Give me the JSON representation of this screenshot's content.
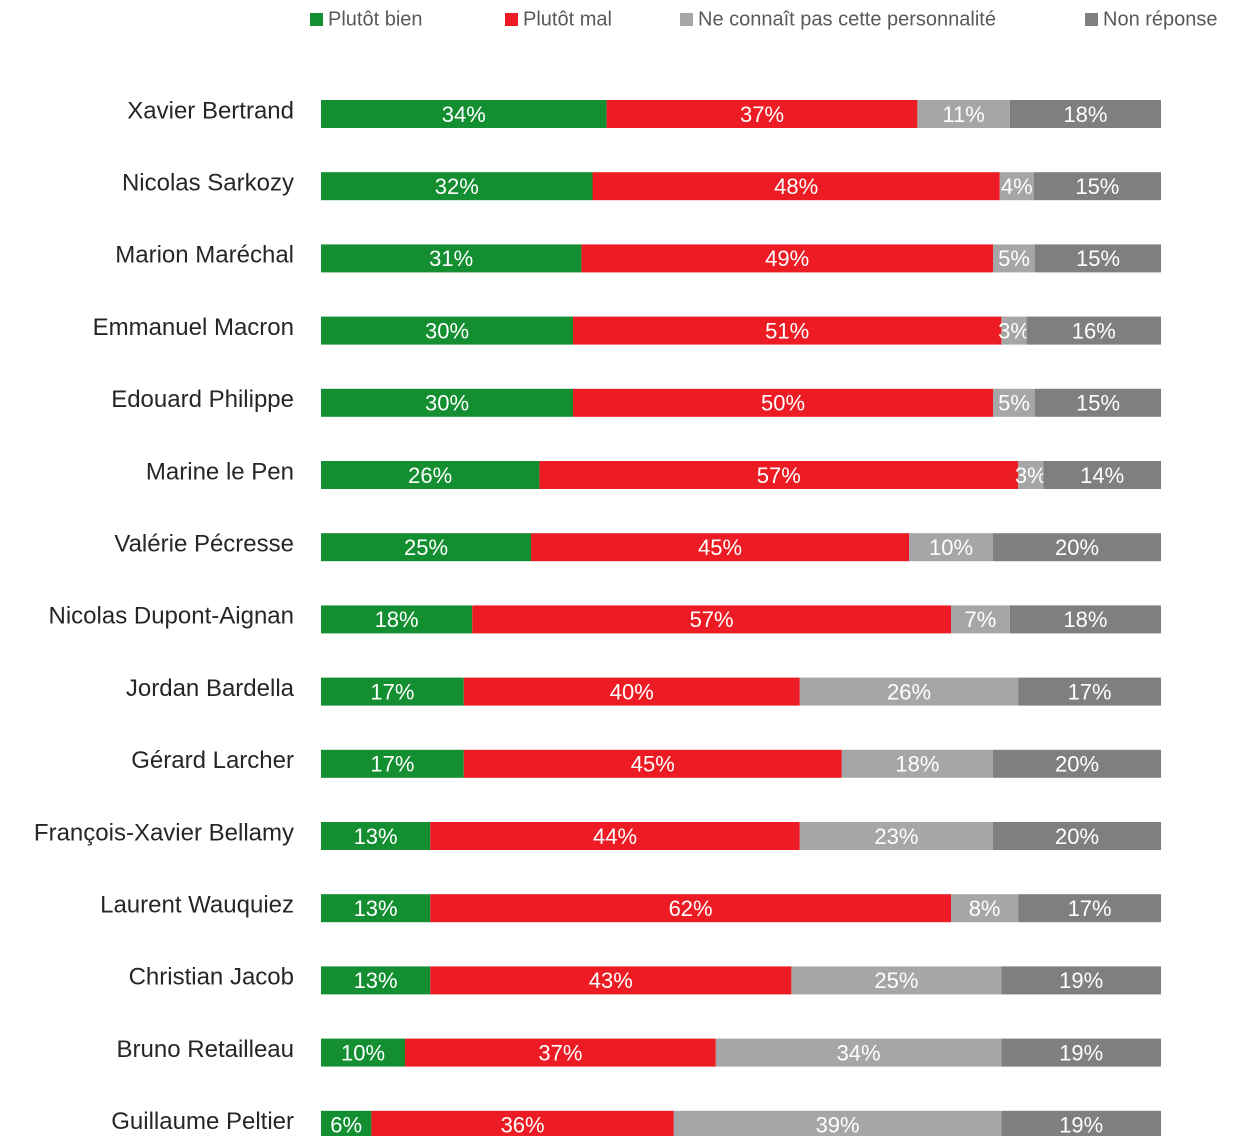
{
  "chart_data": {
    "type": "bar",
    "orientation": "horizontal",
    "stacked": true,
    "categories": [
      "Xavier Bertrand",
      "Nicolas Sarkozy",
      "Marion Maréchal",
      "Emmanuel Macron",
      "Edouard Philippe",
      "Marine le Pen",
      "Valérie Pécresse",
      "Nicolas Dupont-Aignan",
      "Jordan Bardella",
      "Gérard Larcher",
      "François-Xavier Bellamy",
      "Laurent Wauquiez",
      "Christian Jacob",
      "Bruno Retailleau",
      "Guillaume Peltier"
    ],
    "series": [
      {
        "name": "Plutôt bien",
        "color": "#138f31",
        "values": [
          34,
          32,
          31,
          30,
          30,
          26,
          25,
          18,
          17,
          17,
          13,
          13,
          13,
          10,
          6
        ],
        "value_labels": [
          "34%",
          "32%",
          "31%",
          "30%",
          "30%",
          "26%",
          "25%",
          "18%",
          "17%",
          "17%",
          "13%",
          "13%",
          "13%",
          "10%",
          "6%"
        ]
      },
      {
        "name": "Plutôt mal",
        "color": "#ed1c24",
        "values": [
          37,
          48,
          49,
          51,
          50,
          57,
          45,
          57,
          40,
          45,
          44,
          62,
          43,
          37,
          36
        ],
        "value_labels": [
          "37%",
          "48%",
          "49%",
          "51%",
          "50%",
          "57%",
          "45%",
          "57%",
          "40%",
          "45%",
          "44%",
          "62%",
          "43%",
          "37%",
          "36%"
        ]
      },
      {
        "name": "Ne connaît pas cette personnalité",
        "color": "#a6a6a6",
        "values": [
          11,
          4,
          5,
          3,
          5,
          3,
          10,
          7,
          26,
          18,
          23,
          8,
          25,
          34,
          39
        ],
        "value_labels": [
          "11%",
          "4%",
          "5%",
          "3%",
          "5%",
          "3%",
          "10%",
          "7%",
          "26%",
          "18%",
          "23%",
          "8%",
          "25%",
          "34%",
          "39%"
        ]
      },
      {
        "name": "Non réponse",
        "color": "#7f7f7f",
        "values": [
          18,
          15,
          15,
          16,
          15,
          14,
          20,
          18,
          17,
          20,
          20,
          17,
          19,
          19,
          19
        ],
        "value_labels": [
          "18%",
          "15%",
          "15%",
          "16%",
          "15%",
          "14%",
          "20%",
          "18%",
          "17%",
          "20%",
          "20%",
          "17%",
          "19%",
          "19%",
          "19%"
        ]
      }
    ]
  }
}
